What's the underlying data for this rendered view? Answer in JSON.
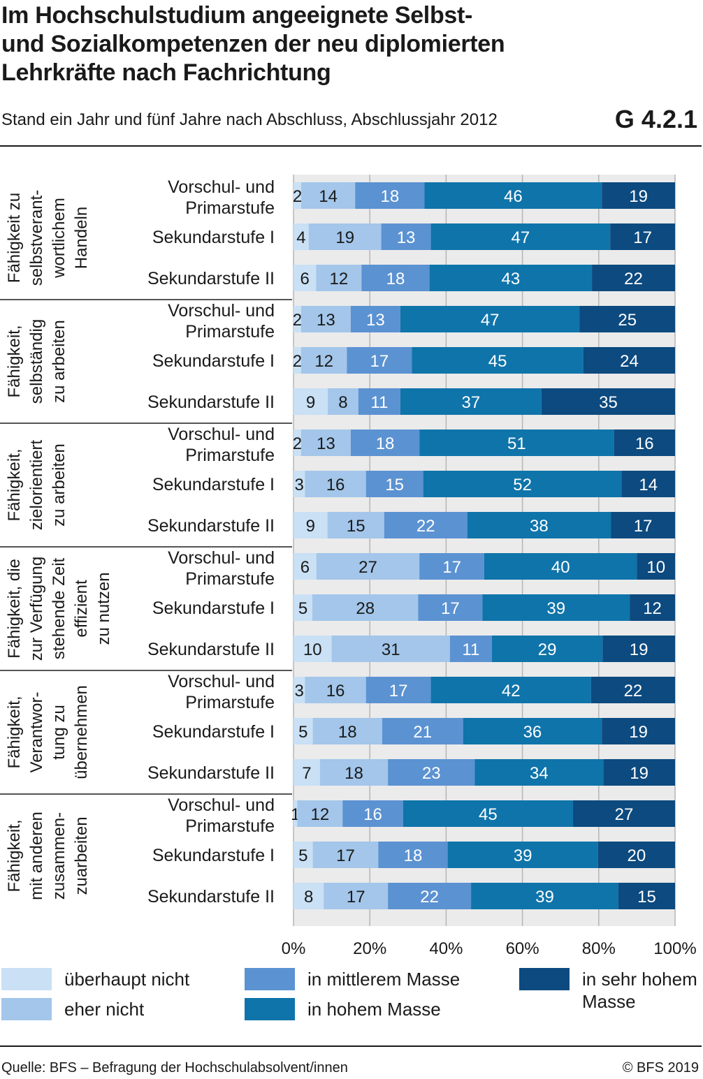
{
  "title_lines": [
    "Im Hochschulstudium angeeignete Selbst-",
    "und Sozialkompetenzen der neu diplomierten",
    "Lehrkräfte nach Fachrichtung"
  ],
  "subtitle": "Stand ein Jahr und fünf Jahre nach Abschluss, Abschlussjahr 2012",
  "figure_code": "G 4.2.1",
  "source": "Quelle: BFS – Befragung der Hochschulabsolvent/innen",
  "copyright": "© BFS 2019",
  "colors": {
    "ueberhaupt_nicht": "#c9e0f5",
    "eher_nicht": "#a3c6ea",
    "mittleren": "#5b92d2",
    "hohem": "#0f74aa",
    "sehr_hohem": "#0c4a7f",
    "grid": "#b5b5b5",
    "background": "#ebebeb"
  },
  "legend": [
    {
      "label": "überhaupt nicht",
      "color": "#c9e0f5"
    },
    {
      "label": "eher nicht",
      "color": "#a3c6ea"
    },
    {
      "label": "in mittlerem Masse",
      "color": "#5b92d2"
    },
    {
      "label": "in hohem Masse",
      "color": "#0f74aa"
    },
    {
      "label": "in sehr hohem Masse",
      "color": "#0c4a7f"
    }
  ],
  "chart_data": {
    "type": "bar",
    "orientation": "horizontal",
    "stacked": true,
    "xlim": [
      0,
      100
    ],
    "x_ticks": [
      "0%",
      "20%",
      "40%",
      "60%",
      "80%",
      "100%"
    ],
    "series_names": [
      "überhaupt nicht",
      "eher nicht",
      "in mittlerem Masse",
      "in hohem Masse",
      "in sehr hohem Masse"
    ],
    "groups": [
      {
        "label_lines": [
          "Fähigkeit zu",
          "selbstverant-",
          "wortlichem",
          "Handeln"
        ],
        "rows": [
          {
            "label_lines": [
              "Vorschul- und",
              "Primarstufe"
            ],
            "values": [
              2,
              14,
              18,
              46,
              19
            ]
          },
          {
            "label_lines": [
              "Sekundarstufe I"
            ],
            "values": [
              4,
              19,
              13,
              47,
              17
            ]
          },
          {
            "label_lines": [
              "Sekundarstufe II"
            ],
            "values": [
              6,
              12,
              18,
              43,
              22
            ]
          }
        ]
      },
      {
        "label_lines": [
          "Fähigkeit,",
          "selbständig",
          "zu arbeiten"
        ],
        "rows": [
          {
            "label_lines": [
              "Vorschul- und",
              "Primarstufe"
            ],
            "values": [
              2,
              13,
              13,
              47,
              25
            ]
          },
          {
            "label_lines": [
              "Sekundarstufe I"
            ],
            "values": [
              2,
              12,
              17,
              45,
              24
            ]
          },
          {
            "label_lines": [
              "Sekundarstufe II"
            ],
            "values": [
              9,
              8,
              11,
              37,
              35
            ]
          }
        ]
      },
      {
        "label_lines": [
          "Fähigkeit,",
          "zielorientiert",
          "zu arbeiten"
        ],
        "rows": [
          {
            "label_lines": [
              "Vorschul- und",
              "Primarstufe"
            ],
            "values": [
              2,
              13,
              18,
              51,
              16
            ]
          },
          {
            "label_lines": [
              "Sekundarstufe I"
            ],
            "values": [
              3,
              16,
              15,
              52,
              14
            ]
          },
          {
            "label_lines": [
              "Sekundarstufe II"
            ],
            "values": [
              9,
              15,
              22,
              38,
              17
            ]
          }
        ]
      },
      {
        "label_lines": [
          "Fähigkeit, die",
          "zur Verfügung",
          "stehende Zeit",
          "effizient",
          "zu nutzen"
        ],
        "rows": [
          {
            "label_lines": [
              "Vorschul- und",
              "Primarstufe"
            ],
            "values": [
              6,
              27,
              17,
              40,
              10
            ]
          },
          {
            "label_lines": [
              "Sekundarstufe I"
            ],
            "values": [
              5,
              28,
              17,
              39,
              12
            ]
          },
          {
            "label_lines": [
              "Sekundarstufe II"
            ],
            "values": [
              10,
              31,
              11,
              29,
              19
            ]
          }
        ]
      },
      {
        "label_lines": [
          "Fähigkeit,",
          "Verantwor-",
          "tung zu",
          "übernehmen"
        ],
        "rows": [
          {
            "label_lines": [
              "Vorschul- und",
              "Primarstufe"
            ],
            "values": [
              3,
              16,
              17,
              42,
              22
            ]
          },
          {
            "label_lines": [
              "Sekundarstufe I"
            ],
            "values": [
              5,
              18,
              21,
              36,
              19
            ]
          },
          {
            "label_lines": [
              "Sekundarstufe II"
            ],
            "values": [
              7,
              18,
              23,
              34,
              19
            ]
          }
        ]
      },
      {
        "label_lines": [
          "Fähigkeit,",
          "mit anderen",
          "zusammen-",
          "zuarbeiten"
        ],
        "rows": [
          {
            "label_lines": [
              "Vorschul- und",
              "Primarstufe"
            ],
            "values": [
              1,
              12,
              16,
              45,
              27
            ]
          },
          {
            "label_lines": [
              "Sekundarstufe I"
            ],
            "values": [
              5,
              17,
              18,
              39,
              20
            ]
          },
          {
            "label_lines": [
              "Sekundarstufe II"
            ],
            "values": [
              8,
              17,
              22,
              39,
              15
            ]
          }
        ]
      }
    ]
  }
}
